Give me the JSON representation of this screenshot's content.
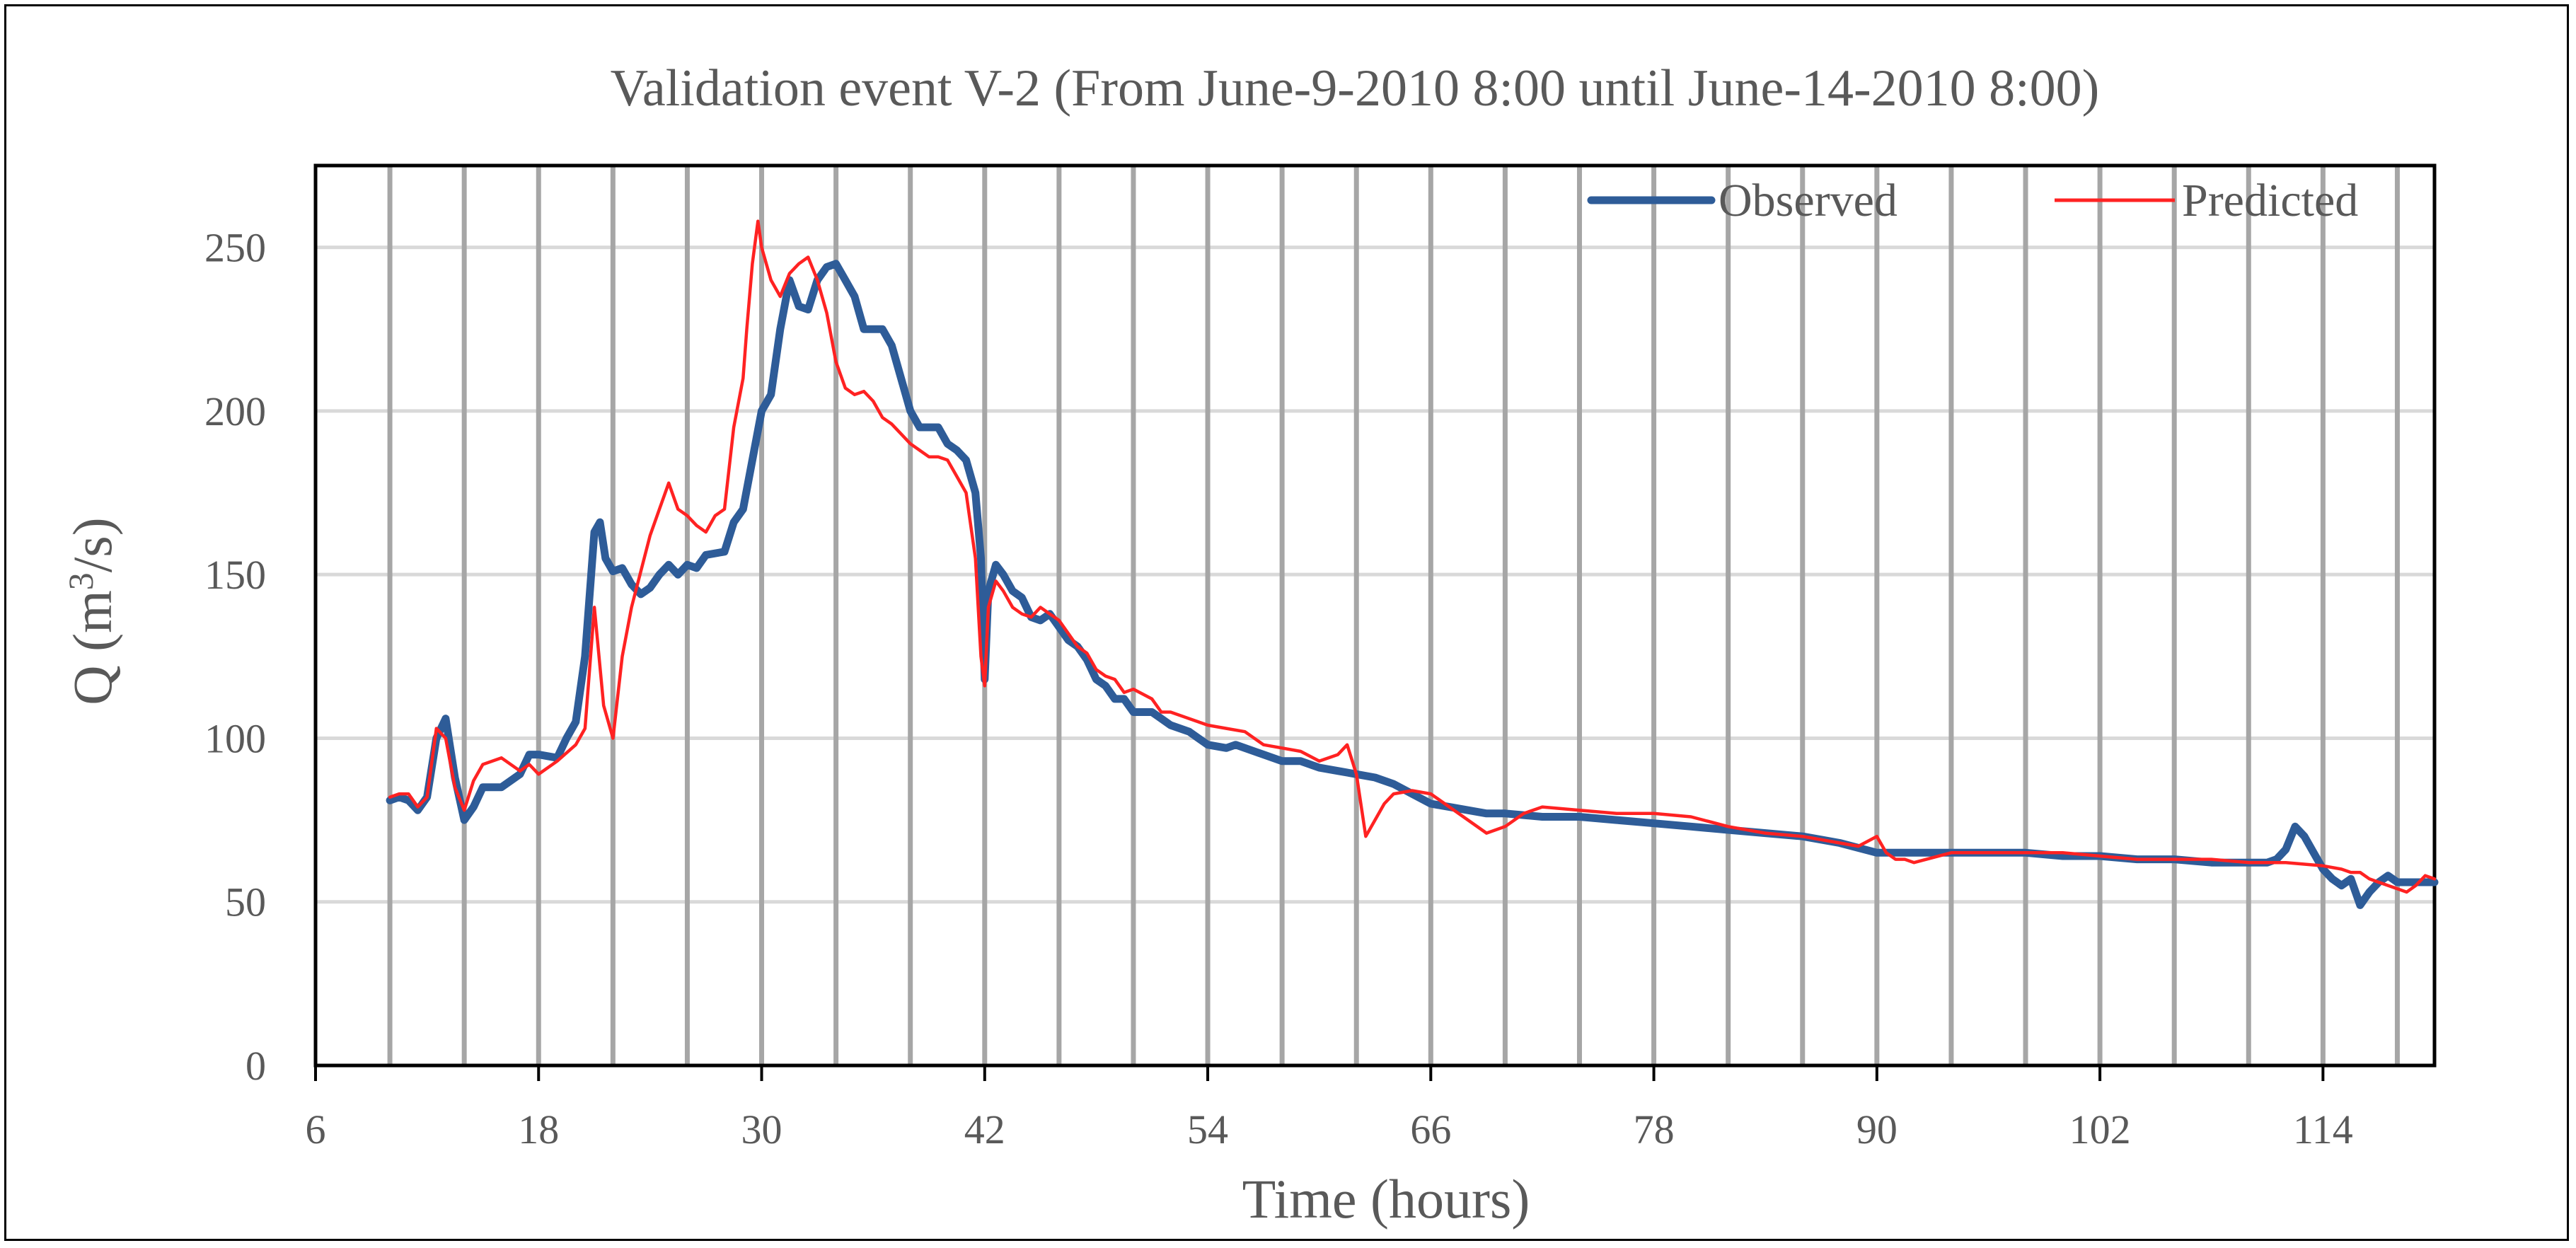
{
  "chart_data": {
    "type": "line",
    "title": "Validation event V-2 (From  June-9-2010  8:00  until   June-14-2010  8:00)",
    "xlabel": "Time (hours)",
    "ylabel_main": "Q (m",
    "ylabel_sup": "3",
    "ylabel_tail": "/s)",
    "xlim": [
      6,
      120
    ],
    "ylim": [
      0,
      275
    ],
    "xticks": [
      6,
      18,
      30,
      42,
      54,
      66,
      78,
      90,
      102,
      114
    ],
    "yticks": [
      0,
      50,
      100,
      150,
      200,
      250
    ],
    "xtick_labels": [
      "6",
      "18",
      "30",
      "42",
      "54",
      "66",
      "78",
      "90",
      "102",
      "114"
    ],
    "ytick_labels": [
      "0",
      "50",
      "100",
      "150",
      "200",
      "250"
    ],
    "vertical_gridlines_x": [
      10,
      14,
      18,
      22,
      26,
      30,
      34,
      38,
      42,
      46,
      50,
      54,
      58,
      62,
      66,
      70,
      74,
      78,
      82,
      86,
      90,
      94,
      98,
      102,
      106,
      110,
      114,
      118
    ],
    "legend_position": "top-right",
    "colors": {
      "observed": "#2e5c98",
      "predicted": "#ff2222",
      "grid_vertical": "#a6a6a6",
      "grid_horizontal": "#d9d9d9"
    },
    "series": [
      {
        "name": "Observed",
        "x": [
          10,
          10.5,
          11,
          11.5,
          12,
          12.5,
          13,
          13.5,
          14,
          14.5,
          15,
          16,
          17,
          17.5,
          18,
          19,
          19.5,
          20,
          20.5,
          21,
          21.3,
          21.6,
          22,
          22.5,
          23,
          23.5,
          24,
          24.5,
          25,
          25.5,
          26,
          26.5,
          27,
          28,
          28.5,
          29,
          29.5,
          30,
          30.5,
          31,
          31.5,
          32,
          32.5,
          33,
          33.5,
          34,
          34.5,
          35,
          35.5,
          36,
          36.5,
          37,
          37.5,
          38,
          38.5,
          39,
          39.5,
          40,
          40.5,
          41,
          41.5,
          41.8,
          42,
          42.2,
          42.6,
          43,
          43.5,
          44,
          44.5,
          45,
          45.5,
          46,
          46.5,
          47,
          47.5,
          48,
          48.5,
          49,
          49.5,
          50,
          51,
          51.5,
          52,
          53,
          53.5,
          54,
          55,
          55.5,
          56,
          57,
          57.5,
          58,
          59,
          60,
          61,
          62,
          63,
          64,
          65,
          66,
          67,
          68,
          69,
          70,
          72,
          74,
          76,
          78,
          80,
          82,
          84,
          86,
          87,
          88,
          90,
          92,
          94,
          96,
          98,
          100,
          102,
          104,
          106,
          108,
          110,
          111,
          111.5,
          112,
          112.5,
          113,
          113.5,
          114,
          114.5,
          115,
          115.5,
          116,
          116.5,
          117,
          117.5,
          118,
          119,
          120
        ],
        "y": [
          81,
          82,
          81,
          78,
          82,
          100,
          106,
          88,
          75,
          79,
          85,
          85,
          89,
          95,
          95,
          94,
          100,
          105,
          125,
          163,
          166,
          155,
          151,
          152,
          147,
          144,
          146,
          150,
          153,
          150,
          153,
          152,
          156,
          157,
          166,
          170,
          185,
          200,
          205,
          225,
          240,
          232,
          231,
          240,
          244,
          245,
          240,
          235,
          225,
          225,
          225,
          220,
          210,
          200,
          195,
          195,
          195,
          190,
          188,
          185,
          175,
          155,
          118,
          145,
          153,
          150,
          145,
          143,
          137,
          136,
          138,
          134,
          130,
          128,
          124,
          118,
          116,
          112,
          112,
          108,
          108,
          106,
          104,
          102,
          100,
          98,
          97,
          98,
          97,
          95,
          94,
          93,
          93,
          91,
          90,
          89,
          88,
          86,
          83,
          80,
          79,
          78,
          77,
          77,
          76,
          76,
          75,
          74,
          73,
          72,
          71,
          70,
          69,
          68,
          65,
          65,
          65,
          65,
          65,
          64,
          64,
          63,
          63,
          62,
          62,
          62,
          63,
          66,
          73,
          70,
          65,
          60,
          57,
          55,
          57,
          49,
          53,
          56,
          58,
          56,
          56,
          56
        ]
      },
      {
        "name": "Predicted",
        "x": [
          10,
          10.5,
          11,
          11.5,
          12,
          12.5,
          13,
          13.5,
          14,
          14.5,
          15,
          16,
          17,
          17.5,
          18,
          19,
          20,
          20.5,
          21,
          21.5,
          22,
          22.5,
          23,
          24,
          24.5,
          25,
          25.5,
          26,
          26.5,
          27,
          27.5,
          28,
          28.5,
          29,
          29.2,
          29.5,
          29.8,
          30,
          30.5,
          31,
          31.5,
          32,
          32.5,
          33,
          33.5,
          34,
          34.5,
          35,
          35.5,
          36,
          36.5,
          37,
          37.5,
          38,
          38.5,
          39,
          39.5,
          40,
          40.5,
          41,
          41.5,
          41.8,
          42,
          42.2,
          42.6,
          43,
          43.5,
          44,
          44.5,
          45,
          45.5,
          46,
          46.5,
          47,
          47.5,
          48,
          48.5,
          49,
          49.5,
          50,
          51,
          51.5,
          52,
          53,
          54,
          55,
          56,
          57,
          58,
          59,
          60,
          61,
          61.5,
          62,
          62.5,
          63,
          63.5,
          64,
          65,
          66,
          67,
          68,
          69,
          70,
          71,
          72,
          74,
          76,
          78,
          80,
          82,
          84,
          86,
          88,
          89,
          90,
          90.5,
          91,
          91.5,
          92,
          94,
          96,
          98,
          100,
          102,
          104,
          106,
          108,
          110,
          112,
          114,
          115,
          115.5,
          116,
          116.5,
          117,
          117.5,
          118,
          118.5,
          119,
          119.5,
          120
        ],
        "y": [
          82,
          83,
          83,
          79,
          82,
          103,
          100,
          85,
          78,
          87,
          92,
          94,
          90,
          92,
          89,
          93,
          98,
          103,
          140,
          110,
          100,
          125,
          140,
          162,
          170,
          178,
          170,
          168,
          165,
          163,
          168,
          170,
          195,
          210,
          225,
          245,
          258,
          250,
          240,
          235,
          242,
          245,
          247,
          240,
          230,
          215,
          207,
          205,
          206,
          203,
          198,
          196,
          193,
          190,
          188,
          186,
          186,
          185,
          180,
          175,
          155,
          125,
          116,
          140,
          148,
          145,
          140,
          138,
          137,
          140,
          138,
          136,
          132,
          128,
          126,
          121,
          119,
          118,
          114,
          115,
          112,
          108,
          108,
          106,
          104,
          103,
          102,
          98,
          97,
          96,
          93,
          95,
          98,
          89,
          70,
          75,
          80,
          83,
          84,
          83,
          79,
          75,
          71,
          73,
          77,
          79,
          78,
          77,
          77,
          76,
          73,
          71,
          70,
          68,
          67,
          70,
          65,
          63,
          63,
          62,
          65,
          65,
          65,
          65,
          64,
          63,
          63,
          63,
          62,
          62,
          61,
          60,
          59,
          59,
          57,
          56,
          55,
          54,
          53,
          55,
          58,
          57
        ]
      }
    ]
  }
}
